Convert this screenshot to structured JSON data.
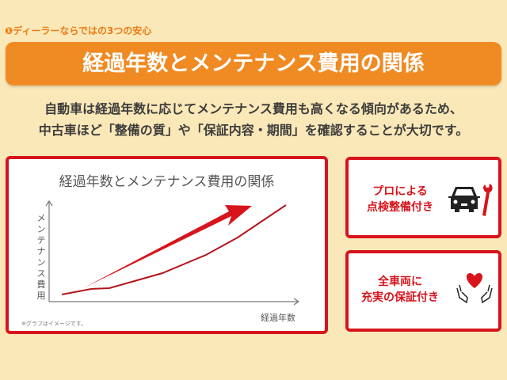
{
  "header": {
    "subtitle": "❶ディーラーならではの3つの安心",
    "title": "経過年数とメンテナンス費用の関係"
  },
  "description": {
    "line1": "自動車は経過年数に応じてメンテナンス費用も高くなる傾向があるため、",
    "line2": "中古車ほど「整備の質」や「保証内容・期間」を確認することが大切です。"
  },
  "graph": {
    "title": "経過年数とメンテナンス費用の関係",
    "ylabel": "メンテナンス費用",
    "xlabel": "経過年数",
    "note": "※グラフはイメージです。",
    "color": "#d7141c"
  },
  "features": [
    {
      "line1": "プロによる",
      "line2": "点検整備付き",
      "icon": "car-wrench-icon"
    },
    {
      "line1": "全車両に",
      "line2": "充実の保証付き",
      "icon": "hands-heart-icon"
    }
  ],
  "colors": {
    "background": "#fbe8b8",
    "banner": "#f08a22",
    "accent": "#d7141c"
  }
}
